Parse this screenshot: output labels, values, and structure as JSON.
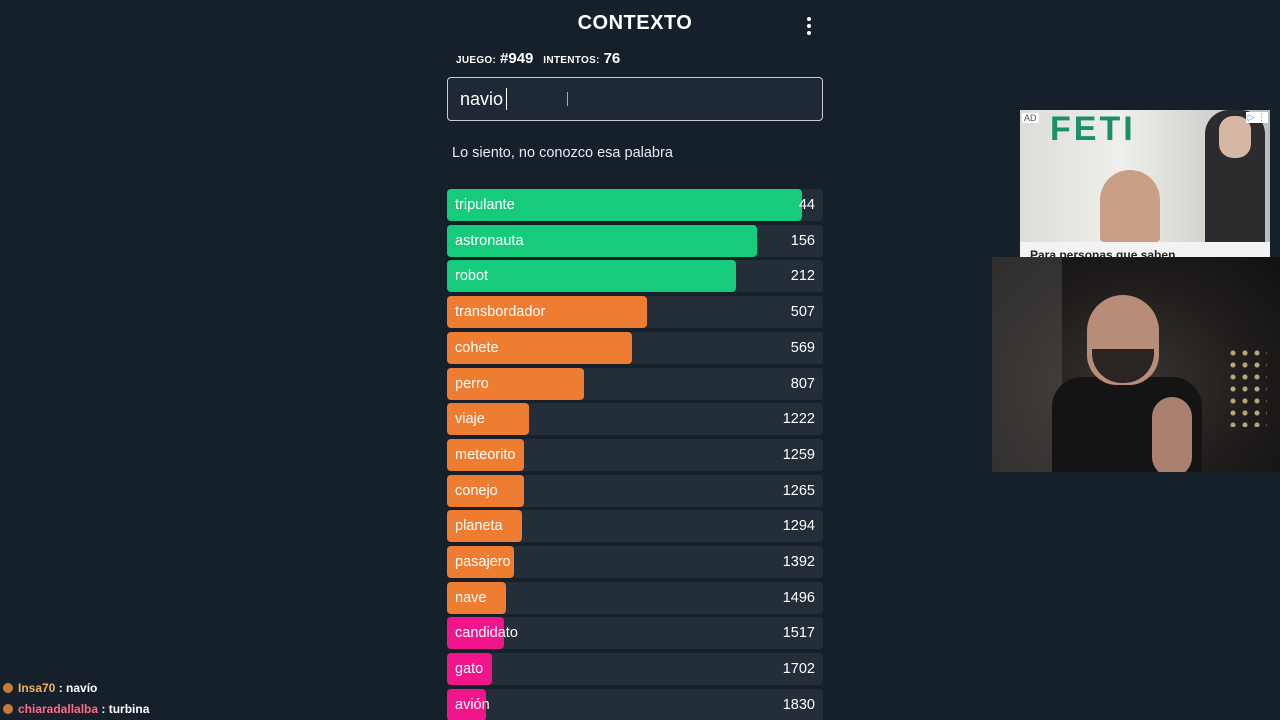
{
  "game": {
    "title": "CONTEXTO",
    "game_label": "JUEGO:",
    "game_number": "#949",
    "attempts_label": "INTENTOS:",
    "attempts": "76",
    "input_value": "navio",
    "message": "Lo siento, no conozco esa palabra"
  },
  "colors": {
    "green": "#16cb7b",
    "orange": "#ef7d31",
    "pink": "#f0158a",
    "row_bg": "#232e39",
    "page_bg": "#16202b"
  },
  "guesses": [
    {
      "word": "tripulante",
      "rank": "44",
      "color": "#16cb7b",
      "fill": 0.944
    },
    {
      "word": "astronauta",
      "rank": "156",
      "color": "#16cb7b",
      "fill": 0.824
    },
    {
      "word": "robot",
      "rank": "212",
      "color": "#16cb7b",
      "fill": 0.769
    },
    {
      "word": "transbordador",
      "rank": "507",
      "color": "#ef7d31",
      "fill": 0.531
    },
    {
      "word": "cohete",
      "rank": "569",
      "color": "#ef7d31",
      "fill": 0.492
    },
    {
      "word": "perro",
      "rank": "807",
      "color": "#ef7d31",
      "fill": 0.364
    },
    {
      "word": "viaje",
      "rank": "1222",
      "color": "#ef7d31",
      "fill": 0.218
    },
    {
      "word": "meteorito",
      "rank": "1259",
      "color": "#ef7d31",
      "fill": 0.205
    },
    {
      "word": "conejo",
      "rank": "1265",
      "color": "#ef7d31",
      "fill": 0.205
    },
    {
      "word": "planeta",
      "rank": "1294",
      "color": "#ef7d31",
      "fill": 0.199
    },
    {
      "word": "pasajero",
      "rank": "1392",
      "color": "#ef7d31",
      "fill": 0.178
    },
    {
      "word": "nave",
      "rank": "1496",
      "color": "#ef7d31",
      "fill": 0.157
    },
    {
      "word": "candidato",
      "rank": "1517",
      "color": "#f0158a",
      "fill": 0.152
    },
    {
      "word": "gato",
      "rank": "1702",
      "color": "#f0158a",
      "fill": 0.12
    },
    {
      "word": "avión",
      "rank": "1830",
      "color": "#f0158a",
      "fill": 0.104
    }
  ],
  "ad": {
    "tag": "AD",
    "shirt_text": "FETI",
    "choices": "▷ ⋮",
    "caption": "Para personas que saben"
  },
  "chat": [
    {
      "user": "Insa70",
      "message": "navío",
      "user_color": "#f2b15a"
    },
    {
      "user": "chiaradallalba",
      "message": "turbina",
      "user_color": "#ff6a8c"
    }
  ]
}
